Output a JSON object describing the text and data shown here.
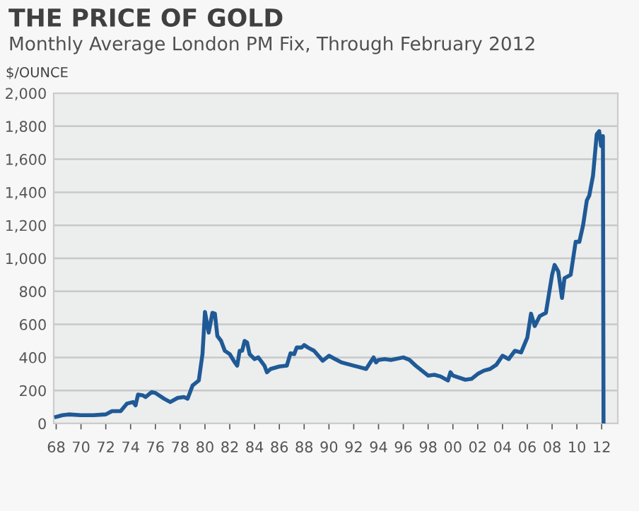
{
  "chart_data": {
    "type": "line",
    "title": "THE PRICE OF GOLD",
    "subtitle": "Monthly Average London PM Fix, Through February 2012",
    "ylabel": "$/OUNCE",
    "x": [
      1968,
      1968.5,
      1969,
      1970,
      1971,
      1972,
      1972.5,
      1973.2,
      1973.7,
      1974.2,
      1974.4,
      1974.6,
      1975,
      1975.2,
      1975.7,
      1976,
      1976.7,
      1977.2,
      1977.8,
      1978.3,
      1978.6,
      1979,
      1979.5,
      1979.8,
      1980,
      1980.3,
      1980.6,
      1980.8,
      1981,
      1981.3,
      1981.6,
      1982,
      1982.4,
      1982.6,
      1982.8,
      1983,
      1983.2,
      1983.4,
      1983.6,
      1984,
      1984.3,
      1984.8,
      1985,
      1985.3,
      1986,
      1986.6,
      1986.9,
      1987.2,
      1987.4,
      1987.8,
      1988,
      1988.3,
      1988.8,
      1989.5,
      1990,
      1990.5,
      1991,
      1992,
      1992.5,
      1993,
      1993.6,
      1993.8,
      1994,
      1994.5,
      1995,
      1996,
      1996.5,
      1997,
      1997.5,
      1998,
      1998.5,
      1999,
      1999.6,
      1999.8,
      2000,
      2001,
      2001.5,
      2002,
      2002.5,
      2003,
      2003.5,
      2004,
      2004.5,
      2005,
      2005.5,
      2006,
      2006.3,
      2006.6,
      2007,
      2007.5,
      2008,
      2008.2,
      2008.5,
      2008.8,
      2009,
      2009.5,
      2009.9,
      2010.2,
      2010.5,
      2010.8,
      2011,
      2011.3,
      2011.6,
      2011.8,
      2011.95,
      2012.1,
      2012.15
    ],
    "series": [
      {
        "color": "#1f5a96",
        "values": [
          40,
          50,
          55,
          50,
          50,
          55,
          75,
          75,
          120,
          130,
          110,
          175,
          170,
          160,
          190,
          185,
          150,
          130,
          155,
          160,
          150,
          230,
          260,
          420,
          675,
          550,
          670,
          665,
          530,
          500,
          440,
          420,
          370,
          350,
          440,
          440,
          500,
          490,
          420,
          390,
          400,
          350,
          310,
          330,
          345,
          350,
          425,
          420,
          460,
          460,
          475,
          460,
          440,
          380,
          410,
          390,
          370,
          350,
          340,
          330,
          400,
          370,
          385,
          390,
          385,
          400,
          385,
          350,
          320,
          290,
          295,
          285,
          260,
          310,
          290,
          265,
          270,
          300,
          320,
          330,
          355,
          410,
          390,
          440,
          430,
          520,
          665,
          590,
          650,
          670,
          900,
          960,
          920,
          760,
          880,
          900,
          1100,
          1100,
          1200,
          1350,
          1380,
          1500,
          1750,
          1770,
          1680,
          1740,
          0
        ]
      }
    ],
    "xlim": [
      1967.8,
      2013.3
    ],
    "xticks": [
      {
        "value": 1968,
        "label": "68"
      },
      {
        "value": 1970,
        "label": "70"
      },
      {
        "value": 1972,
        "label": "72"
      },
      {
        "value": 1974,
        "label": "74"
      },
      {
        "value": 1976,
        "label": "76"
      },
      {
        "value": 1978,
        "label": "78"
      },
      {
        "value": 1980,
        "label": "80"
      },
      {
        "value": 1982,
        "label": "82"
      },
      {
        "value": 1984,
        "label": "84"
      },
      {
        "value": 1986,
        "label": "86"
      },
      {
        "value": 1988,
        "label": "88"
      },
      {
        "value": 1990,
        "label": "90"
      },
      {
        "value": 1992,
        "label": "92"
      },
      {
        "value": 1994,
        "label": "94"
      },
      {
        "value": 1996,
        "label": "96"
      },
      {
        "value": 1998,
        "label": "98"
      },
      {
        "value": 2000,
        "label": "00"
      },
      {
        "value": 2002,
        "label": "02"
      },
      {
        "value": 2004,
        "label": "04"
      },
      {
        "value": 2006,
        "label": "06"
      },
      {
        "value": 2008,
        "label": "08"
      },
      {
        "value": 2010,
        "label": "10"
      },
      {
        "value": 2012,
        "label": "12"
      }
    ],
    "ylim": [
      0,
      2000
    ],
    "yticks": [
      {
        "value": 0,
        "label": "0"
      },
      {
        "value": 200,
        "label": "200"
      },
      {
        "value": 400,
        "label": "400"
      },
      {
        "value": 600,
        "label": "600"
      },
      {
        "value": 800,
        "label": "800"
      },
      {
        "value": 1000,
        "label": "1,000"
      },
      {
        "value": 1200,
        "label": "1,200"
      },
      {
        "value": 1400,
        "label": "1,400"
      },
      {
        "value": 1600,
        "label": "1,600"
      },
      {
        "value": 1800,
        "label": "1,800"
      },
      {
        "value": 2000,
        "label": "2,000"
      }
    ],
    "grid": "y",
    "legend": false,
    "marker": "none",
    "line_style": "solid"
  }
}
